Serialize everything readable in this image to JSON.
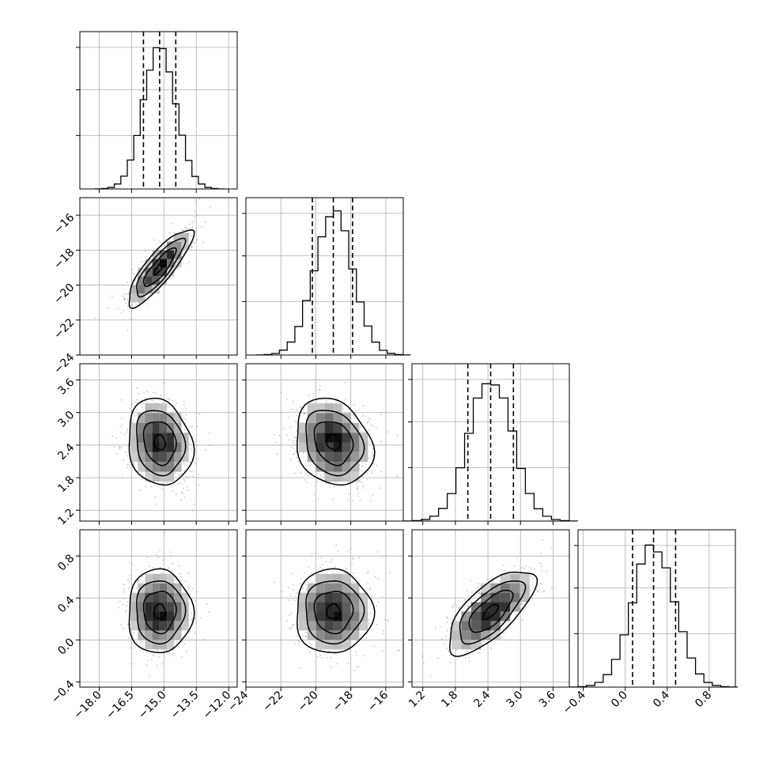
{
  "chart_data": {
    "type": "corner",
    "description": "Corner plot of four parameters: 1D marginal histograms on the diagonal with dashed quantile lines, 2D density (filled histogram + contours + scatter) below the diagonal",
    "params": [
      {
        "range": [
          -18.9,
          -11.6
        ],
        "ticks": [
          -18.0,
          -16.5,
          -15.0,
          -13.5,
          -12.0
        ],
        "tick_labels": [
          "−18.0",
          "−16.5",
          "−15.0",
          "−13.5",
          "−12.0"
        ],
        "mean": -15.2,
        "sd": 0.75,
        "quantiles": [
          -15.95,
          -15.2,
          -14.45
        ]
      },
      {
        "range": [
          -24.0,
          -15.0
        ],
        "ticks": [
          -24,
          -22,
          -20,
          -18,
          -16
        ],
        "tick_labels": [
          "−24",
          "−22",
          "−20",
          "−18",
          "−16"
        ],
        "mean": -19.0,
        "sd": 1.1,
        "quantiles": [
          -20.2,
          -19.0,
          -17.9
        ]
      },
      {
        "range": [
          1.0,
          3.9
        ],
        "ticks": [
          1.2,
          1.8,
          2.4,
          3.0,
          3.6
        ],
        "tick_labels": [
          "1.2",
          "1.8",
          "2.4",
          "3.0",
          "3.6"
        ],
        "mean": 2.45,
        "sd": 0.4,
        "quantiles": [
          2.03,
          2.45,
          2.87
        ]
      },
      {
        "range": [
          -0.45,
          1.05
        ],
        "ticks": [
          -0.4,
          0.0,
          0.4,
          0.8
        ],
        "tick_labels": [
          "−0.4",
          "0.0",
          "0.4",
          "0.8"
        ],
        "mean": 0.27,
        "sd": 0.2,
        "quantiles": [
          0.07,
          0.27,
          0.48
        ]
      }
    ],
    "correlations": {
      "0-1": 0.85,
      "0-2": -0.15,
      "0-3": 0.0,
      "1-2": -0.2,
      "1-3": 0.0,
      "2-3": 0.7
    },
    "histogram_bins": 20,
    "contour_levels_sigma": [
      1,
      1.5,
      2
    ],
    "grid": true,
    "colors": {
      "line": "#000000",
      "grid": "#b0b0b0",
      "scatter": "#808080",
      "density_dark": "#000000",
      "background": "#ffffff"
    }
  }
}
